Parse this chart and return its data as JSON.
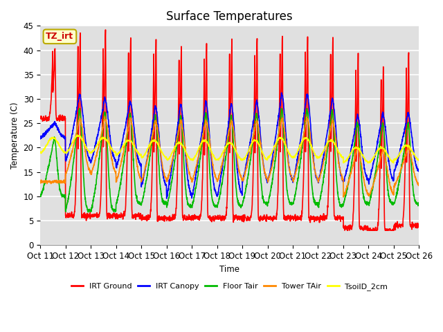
{
  "title": "Surface Temperatures",
  "xlabel": "Time",
  "ylabel": "Temperature (C)",
  "xlim_labels": [
    "Oct 11",
    "Oct 12",
    "Oct 13",
    "Oct 14",
    "Oct 15",
    "Oct 16",
    "Oct 17",
    "Oct 18",
    "Oct 19",
    "Oct 20",
    "Oct 21",
    "Oct 22",
    "Oct 23",
    "Oct 24",
    "Oct 25",
    "Oct 26"
  ],
  "ylim": [
    0,
    45
  ],
  "yticks": [
    0,
    5,
    10,
    15,
    20,
    25,
    30,
    35,
    40,
    45
  ],
  "annotation_text": "TZ_irt",
  "annotation_color": "#cc0000",
  "annotation_bg": "#ffffcc",
  "series": {
    "IRT Ground": {
      "color": "#ff0000",
      "lw": 1.2
    },
    "IRT Canopy": {
      "color": "#0000ff",
      "lw": 1.2
    },
    "Floor Tair": {
      "color": "#00bb00",
      "lw": 1.2
    },
    "Tower TAir": {
      "color": "#ff8800",
      "lw": 1.2
    },
    "TsoilD_2cm": {
      "color": "#ffff00",
      "lw": 1.2
    }
  },
  "bg_color": "#e0e0e0",
  "grid_color": "#ffffff",
  "n_days": 15,
  "pts_per_day": 144,
  "title_fontsize": 12,
  "ground_peaks": [
    40.8,
    44.4,
    44.4,
    43.0,
    43.0,
    41.5,
    42.0,
    42.7,
    42.5,
    43.3,
    43.5,
    43.0,
    39.5,
    37.5,
    40.0
  ],
  "ground_nights": [
    26.0,
    6.0,
    6.0,
    6.0,
    5.5,
    5.5,
    5.5,
    5.5,
    5.5,
    5.5,
    5.5,
    5.5,
    3.5,
    3.0,
    4.0
  ],
  "canopy_peaks": [
    25.0,
    31.0,
    30.0,
    29.5,
    28.5,
    29.0,
    29.5,
    29.0,
    29.5,
    31.0,
    31.0,
    30.0,
    26.5,
    27.0,
    27.0
  ],
  "canopy_nights": [
    22.0,
    17.0,
    17.0,
    16.0,
    12.0,
    10.0,
    10.0,
    10.0,
    13.0,
    13.0,
    13.0,
    13.0,
    13.0,
    13.0,
    15.0
  ],
  "floor_peaks": [
    22.0,
    28.0,
    27.5,
    27.0,
    26.5,
    26.5,
    27.0,
    26.5,
    27.0,
    28.0,
    28.0,
    27.5,
    25.0,
    25.0,
    25.0
  ],
  "floor_nights": [
    10.0,
    7.0,
    7.0,
    8.5,
    8.5,
    8.0,
    8.0,
    8.0,
    8.5,
    8.5,
    8.5,
    8.0,
    8.5,
    8.5,
    8.5
  ],
  "tower_peaks": [
    13.0,
    26.0,
    26.0,
    26.0,
    25.5,
    25.5,
    25.5,
    25.5,
    25.5,
    26.0,
    26.0,
    25.5,
    20.0,
    19.5,
    20.0
  ],
  "tower_nights": [
    13.0,
    14.5,
    14.5,
    13.0,
    13.0,
    13.0,
    13.0,
    13.0,
    13.0,
    13.0,
    13.0,
    13.0,
    10.0,
    10.0,
    12.0
  ],
  "soil_peaks": [
    22.0,
    22.5,
    22.0,
    21.5,
    21.5,
    21.0,
    21.5,
    21.0,
    21.5,
    22.0,
    22.0,
    21.5,
    20.0,
    20.0,
    20.5
  ],
  "soil_nights": [
    19.0,
    19.0,
    19.0,
    18.5,
    18.0,
    17.5,
    17.5,
    17.5,
    17.5,
    18.0,
    18.0,
    18.0,
    17.0,
    17.0,
    17.5
  ]
}
